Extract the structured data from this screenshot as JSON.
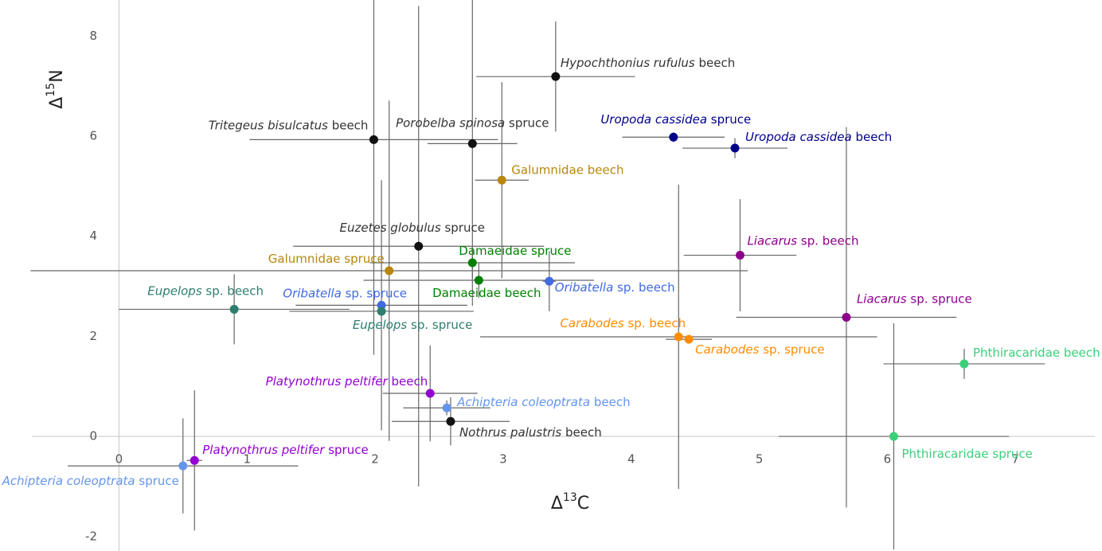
{
  "chart_data": {
    "type": "scatter",
    "x_label": {
      "symbol": "Δ",
      "sup": "13",
      "element": "C"
    },
    "y_label": {
      "symbol": "Δ",
      "sup": "15",
      "element": "N"
    },
    "xlim": [
      -0.68,
      7.62
    ],
    "ylim": [
      -2.29,
      8.72
    ],
    "xticks": [
      0,
      1,
      2,
      3,
      4,
      5,
      6,
      7
    ],
    "yticks": [
      -2,
      0,
      2,
      4,
      6,
      8
    ],
    "points": [
      {
        "italic": "Hypochthonius rufulus",
        "name": "beech",
        "color": "#111111",
        "label_color": "#333333",
        "x": 3.41,
        "y": 7.19,
        "xerr": 0.62,
        "yerr": 1.1
      },
      {
        "italic": "Tritegeus bisulcatus",
        "name": "beech",
        "color": "#111111",
        "label_color": "#333333",
        "x": 1.99,
        "y": 5.93,
        "xerr": 0.97,
        "yerr": 4.3
      },
      {
        "italic": "Porobelba spinosa",
        "name": "spruce",
        "color": "#111111",
        "label_color": "#333333",
        "x": 2.76,
        "y": 5.85,
        "xerr": 0.35,
        "yerr": 3.24
      },
      {
        "italic": "Uropoda cassidea",
        "name": "spruce",
        "color": "#00008b",
        "label_color": "#00008b",
        "x": 4.33,
        "y": 5.98,
        "xerr": 0.4,
        "yerr": 0.1
      },
      {
        "italic": "Uropoda cassidea",
        "name": "beech",
        "color": "#00008b",
        "label_color": "#00008b",
        "x": 4.81,
        "y": 5.76,
        "xerr": 0.41,
        "yerr": 0.2
      },
      {
        "name": "Galumnidae beech",
        "color": "#b8860b",
        "label_color": "#b8860b",
        "x": 2.99,
        "y": 5.12,
        "xerr": 0.21,
        "yerr": 1.96
      },
      {
        "italic": "Euzetes globulus",
        "name": "spruce",
        "color": "#111111",
        "label_color": "#333333",
        "x": 2.34,
        "y": 3.8,
        "xerr": 0.98,
        "yerr": 4.8
      },
      {
        "italic": "Liacarus",
        "name": "sp. beech",
        "color": "#8b008b",
        "label_color": "#8b008b",
        "x": 4.85,
        "y": 3.62,
        "xerr": 0.44,
        "yerr": 1.12
      },
      {
        "name": "Damaeidae spruce",
        "color": "#008000",
        "label_color": "#008000",
        "x": 2.76,
        "y": 3.47,
        "xerr": 0.8,
        "yerr": 0.3
      },
      {
        "name": "Galumnidae spruce",
        "color": "#b8860b",
        "label_color": "#b8860b",
        "x": 2.11,
        "y": 3.31,
        "xerr": 2.8,
        "yerr": 3.4
      },
      {
        "name": "Damaeidae beech",
        "color": "#008000",
        "label_color": "#008000",
        "x": 2.81,
        "y": 3.12,
        "xerr": 0.9,
        "yerr": 0.35
      },
      {
        "italic": "Oribatella",
        "name": "sp. beech",
        "color": "#4169e1",
        "label_color": "#4169e1",
        "x": 3.36,
        "y": 3.1,
        "xerr": 0.05,
        "yerr": 0.6
      },
      {
        "italic": "Eupelops",
        "name": "sp. beech",
        "color": "#2e7d6e",
        "label_color": "#2e7d6e",
        "x": 0.9,
        "y": 2.54,
        "xerr": 0.9,
        "yerr": 0.7
      },
      {
        "italic": "Oribatella",
        "name": "sp. spruce",
        "color": "#4169e1",
        "label_color": "#4169e1",
        "x": 2.05,
        "y": 2.62,
        "xerr": 0.67,
        "yerr": 2.5
      },
      {
        "italic": "Eupelops",
        "name": "sp. spruce",
        "color": "#2e7d6e",
        "label_color": "#2e7d6e",
        "x": 2.05,
        "y": 2.5,
        "xerr": 0.72,
        "yerr": 0.1
      },
      {
        "italic": "Liacarus",
        "name": "sp. spruce",
        "color": "#8b008b",
        "label_color": "#8b008b",
        "x": 5.68,
        "y": 2.38,
        "xerr": 0.86,
        "yerr": 3.8
      },
      {
        "italic": "Carabodes",
        "name": "sp. beech",
        "color": "#ff8c00",
        "label_color": "#ff8c00",
        "x": 4.37,
        "y": 1.99,
        "xerr": 1.55,
        "yerr": 3.04
      },
      {
        "italic": "Carabodes",
        "name": "sp. spruce",
        "color": "#ff8c00",
        "label_color": "#ff8c00",
        "x": 4.45,
        "y": 1.94,
        "xerr": 0.18,
        "yerr": 0.05
      },
      {
        "name": "Phthiracaridae beech",
        "color": "#3ccf7a",
        "label_color": "#3ccf7a",
        "x": 6.6,
        "y": 1.45,
        "xerr": 0.63,
        "yerr": 0.3
      },
      {
        "italic": "Platynothrus peltifer",
        "name": "beech",
        "color": "#9400d3",
        "label_color": "#9400d3",
        "x": 2.43,
        "y": 0.86,
        "xerr": 0.37,
        "yerr": 0.96
      },
      {
        "italic": "Achipteria coleoptrata",
        "name": "beech",
        "color": "#6495ed",
        "label_color": "#6495ed",
        "x": 2.56,
        "y": 0.57,
        "xerr": 0.34,
        "yerr": 0.15
      },
      {
        "italic": "Nothrus palustris",
        "name": "beech",
        "color": "#111111",
        "label_color": "#333333",
        "x": 2.59,
        "y": 0.3,
        "xerr": 0.46,
        "yerr": 0.48
      },
      {
        "name": "Phthiracaridae spruce",
        "color": "#3ccf7a",
        "label_color": "#3ccf7a",
        "x": 6.05,
        "y": 0.0,
        "xerr": 0.9,
        "yerr": 2.26
      },
      {
        "italic": "Platynothrus peltifer",
        "name": "spruce",
        "color": "#9400d3",
        "label_color": "#9400d3",
        "x": 0.59,
        "y": -0.48,
        "xerr": 0.06,
        "yerr": 1.4
      },
      {
        "italic": "Achipteria coleoptrata",
        "name": "spruce",
        "color": "#6495ed",
        "label_color": "#6495ed",
        "x": 0.5,
        "y": -0.59,
        "xerr": 0.9,
        "yerr": 0.95
      }
    ]
  }
}
